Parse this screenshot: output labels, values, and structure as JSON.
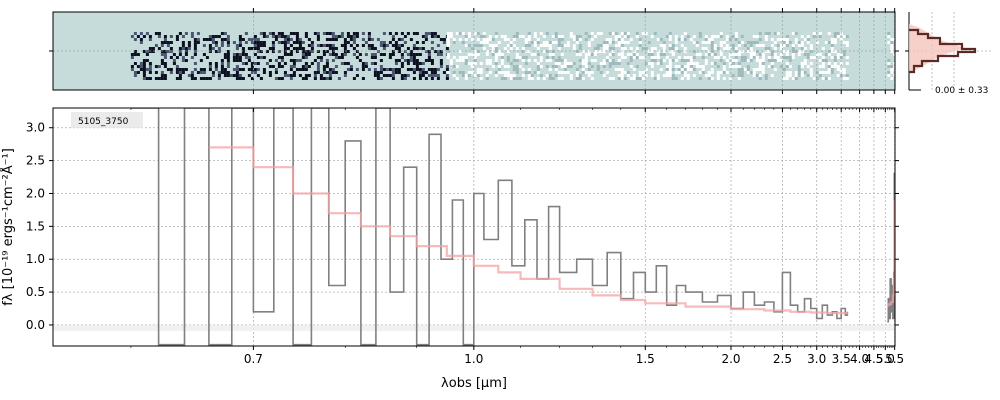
{
  "chart_data": {
    "type": "line",
    "object_label": "5105_3750",
    "xlabel": "λobs [μm]",
    "ylabel": "fλ [10⁻¹⁹ ergs⁻¹cm⁻²Å⁻¹]",
    "x_scale": "reciprocal",
    "xlim": [
      0.55,
      5.52
    ],
    "ylim": [
      -0.32,
      3.3
    ],
    "xticks": [
      0.7,
      1.0,
      1.5,
      2.0,
      2.5,
      3.0,
      3.5,
      4.0,
      4.5,
      5.0,
      5.5
    ],
    "xtick_labels": [
      "0.7",
      "1.0",
      "1.5",
      "2.0",
      "2.5",
      "3.0",
      "3.5",
      "4.0",
      "4.5",
      "5.0",
      "5.5"
    ],
    "yticks": [
      0.0,
      0.5,
      1.0,
      1.5,
      2.0,
      2.5,
      3.0
    ],
    "ytick_labels": [
      "0.0",
      "0.5",
      "1.0",
      "1.5",
      "2.0",
      "2.5",
      "3.0"
    ],
    "grid": true,
    "series": [
      {
        "kind": "data",
        "color": "#808080",
        "x": [
          0.6,
          0.62,
          0.64,
          0.66,
          0.68,
          0.7,
          0.72,
          0.74,
          0.76,
          0.78,
          0.8,
          0.82,
          0.84,
          0.86,
          0.88,
          0.9,
          0.92,
          0.94,
          0.96,
          0.98,
          1.0,
          1.02,
          1.05,
          1.08,
          1.11,
          1.14,
          1.17,
          1.2,
          1.25,
          1.3,
          1.35,
          1.4,
          1.45,
          1.5,
          1.55,
          1.6,
          1.65,
          1.7,
          1.8,
          1.9,
          2.0,
          2.1,
          2.2,
          2.3,
          2.4,
          2.5,
          2.6,
          2.7,
          2.8,
          2.9,
          3.0,
          3.1,
          3.2,
          3.3,
          3.4,
          3.5,
          3.6,
          3.65,
          5.1,
          5.15,
          5.2,
          5.25,
          5.3,
          5.35,
          5.4,
          5.45,
          5.48,
          5.5
        ],
        "y": [
          3.3,
          -0.3,
          3.3,
          -0.3,
          3.3,
          0.2,
          3.3,
          -0.3,
          3.3,
          0.6,
          2.8,
          -0.3,
          3.3,
          0.5,
          2.4,
          -0.3,
          2.9,
          1.0,
          1.9,
          -0.3,
          2.0,
          1.3,
          2.2,
          0.9,
          1.6,
          0.7,
          1.8,
          0.8,
          1.0,
          0.6,
          1.1,
          0.4,
          0.8,
          0.5,
          0.9,
          0.3,
          0.6,
          0.5,
          0.35,
          0.45,
          0.25,
          0.5,
          0.3,
          0.35,
          0.2,
          0.8,
          0.3,
          0.2,
          0.4,
          0.25,
          0.1,
          0.3,
          0.15,
          0.2,
          0.1,
          0.25,
          0.15,
          0.2,
          0.05,
          0.4,
          0.1,
          0.7,
          0.2,
          0.6,
          0.1,
          0.8,
          2.3,
          0.5
        ]
      },
      {
        "kind": "model",
        "color": "#f4a3a3",
        "x": [
          0.66,
          0.7,
          0.74,
          0.78,
          0.82,
          0.86,
          0.9,
          0.95,
          1.0,
          1.05,
          1.1,
          1.2,
          1.3,
          1.4,
          1.5,
          1.7,
          2.0,
          2.3,
          2.6,
          2.9,
          3.2,
          3.5,
          3.65,
          5.1,
          5.2,
          5.3,
          5.4,
          5.45,
          5.5
        ],
        "y": [
          2.7,
          2.4,
          2.0,
          1.7,
          1.5,
          1.35,
          1.2,
          1.05,
          0.9,
          0.8,
          0.7,
          0.55,
          0.45,
          0.38,
          0.33,
          0.28,
          0.24,
          0.22,
          0.2,
          0.19,
          0.18,
          0.18,
          0.19,
          0.3,
          0.32,
          0.35,
          0.45,
          0.7,
          1.9
        ]
      }
    ],
    "histogram_annotation": "0.00 ± 0.33",
    "colors": {
      "spectrum": "#808080",
      "model": "#f4a3a3",
      "stamp_background": "#c5dcdb",
      "grid": "#b0b0b0",
      "histogram_line": "#5a2a26",
      "histogram_fill": "#f6c4bd"
    }
  }
}
